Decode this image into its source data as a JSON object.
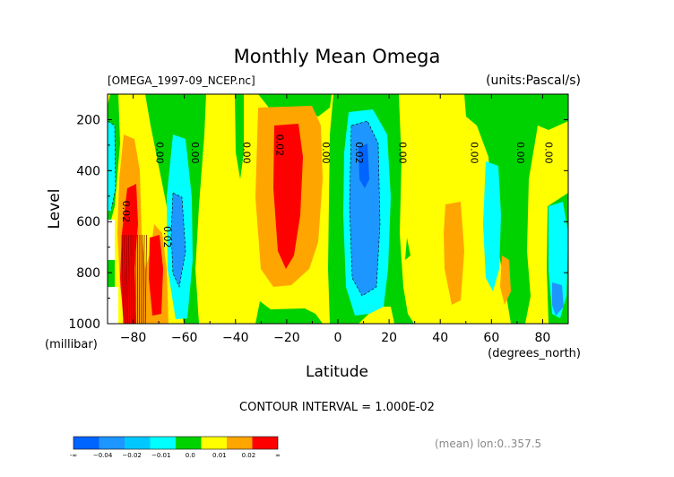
{
  "chart_data": {
    "type": "heatmap",
    "title": "Monthly Mean Omega",
    "subtitle_left": "[OMEGA_1997-09_NCEP.nc]",
    "subtitle_right": "(units:Pascal/s)",
    "xlabel": "Latitude",
    "ylabel": "Level",
    "y_unit_label": "(millibar)",
    "x_unit_label": "(degrees_north)",
    "xlim": [
      -90,
      90
    ],
    "ylim": [
      1000,
      100
    ],
    "x_ticks": [
      -80,
      -60,
      -40,
      -20,
      0,
      20,
      40,
      60,
      80
    ],
    "x_tick_labels": [
      "−80",
      "−60",
      "−40",
      "−20",
      "0",
      "20",
      "40",
      "60",
      "80"
    ],
    "y_ticks": [
      200,
      400,
      600,
      800,
      1000
    ],
    "y_tick_labels": [
      "200",
      "400",
      "600",
      "800",
      "1000"
    ],
    "contour_interval_text": "CONTOUR INTERVAL = 1.000E-02",
    "footer_note": "(mean) lon:0..357.5",
    "contour_labels": [
      {
        "text": "0.02",
        "lat": -84,
        "p": 560
      },
      {
        "text": "0.00",
        "lat": -71,
        "p": 330
      },
      {
        "text": "0.02",
        "lat": -68,
        "p": 660
      },
      {
        "text": "0.00",
        "lat": -57,
        "p": 330
      },
      {
        "text": "0.00",
        "lat": -37,
        "p": 330
      },
      {
        "text": "0.02",
        "lat": -24,
        "p": 300
      },
      {
        "text": "0.00",
        "lat": -6,
        "p": 330
      },
      {
        "text": "0.02",
        "lat": 7,
        "p": 330
      },
      {
        "text": "0.00",
        "lat": 24,
        "p": 330
      },
      {
        "text": "0.00",
        "lat": 52,
        "p": 330
      },
      {
        "text": "0.00",
        "lat": 70,
        "p": 330
      },
      {
        "text": "0.00",
        "lat": 81,
        "p": 330
      }
    ],
    "colorbar": {
      "labels": [
        "-∞",
        "−0.04",
        "−0.02",
        "−0.01",
        "0.0",
        "0.01",
        "0.02",
        "∞"
      ],
      "colors": [
        "#0064ff",
        "#1e96ff",
        "#00c8ff",
        "#00ffff",
        "#00d200",
        "#ffff00",
        "#ffa500",
        "#ff0000"
      ]
    }
  }
}
